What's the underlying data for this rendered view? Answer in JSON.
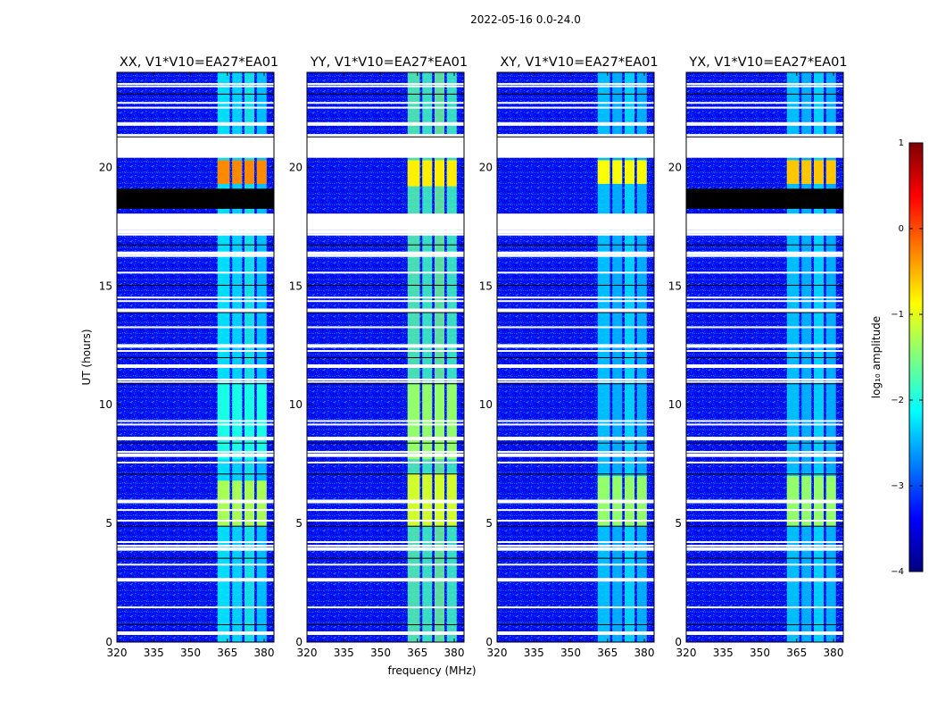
{
  "chart_data": {
    "type": "heatmap",
    "suptitle": "2022-05-16 0.0-24.0",
    "xlabel": "frequency (MHz)",
    "ylabel": "UT (hours)",
    "xlim": [
      320,
      384
    ],
    "ylim": [
      0,
      24
    ],
    "xticks": [
      320,
      335,
      350,
      365,
      380
    ],
    "yticks": [
      0,
      5,
      10,
      15,
      20
    ],
    "colorbar": {
      "label": "log₁₀ amplitude",
      "range": [
        -4,
        1
      ],
      "ticks": [
        1,
        0,
        -1,
        -2,
        -3,
        -4
      ],
      "colormap": [
        "#00007f",
        "#0000ff",
        "#007fff",
        "#00ffff",
        "#7fff7f",
        "#ffff00",
        "#ff7f00",
        "#ff0000",
        "#7f0000"
      ]
    },
    "background_log_amplitude": -3.3,
    "rfi_freq_bands_mhz": [
      [
        361,
        366
      ],
      [
        367,
        371
      ],
      [
        372,
        376
      ],
      [
        377,
        381
      ]
    ],
    "flagged_rows_ut": [
      0.45,
      0.75,
      1.5,
      2.7,
      3.3,
      3.55,
      4.0,
      4.1,
      4.25,
      4.9,
      5.15,
      5.6,
      6.0,
      7.1,
      7.6,
      7.95,
      8.05,
      8.4,
      8.65,
      9.2,
      9.35,
      10.9,
      11.0,
      11.1,
      11.7,
      12.0,
      12.3,
      12.55,
      13.3,
      13.9,
      14.05,
      14.4,
      14.55,
      15.05,
      15.6,
      16.3,
      16.45,
      16.75,
      17.2,
      17.35,
      21.0,
      21.3,
      21.9,
      22.55,
      22.75,
      23.1,
      23.45,
      23.55
    ],
    "flagged_blocks_ut": [
      [
        17.35,
        18.05
      ],
      [
        20.4,
        21.4
      ]
    ],
    "panels": [
      {
        "title": "XX, V1*V10=EA27*EA01",
        "band_strength": [
          -2.1,
          -2.2,
          -2.0,
          -2.3
        ],
        "events": [
          {
            "ut": [
              4.9,
              6.8
            ],
            "freq": [
              361,
              381
            ],
            "log_amplitude": -1.3
          },
          {
            "ut": [
              19.3,
              20.3
            ],
            "freq": [
              361,
              381
            ],
            "log_amplitude": -0.3
          },
          {
            "ut": [
              7.7,
              10.9
            ],
            "freq": [
              361,
              381
            ],
            "log_amplitude": -2.0
          }
        ],
        "blackout_ut": [
          18.25,
          19.1
        ]
      },
      {
        "title": "YY, V1*V10=EA27*EA01",
        "band_strength": [
          -1.7,
          -1.8,
          -1.6,
          -1.8
        ],
        "events": [
          {
            "ut": [
              4.9,
              7.1
            ],
            "freq": [
              361,
              381
            ],
            "log_amplitude": -1.1
          },
          {
            "ut": [
              7.7,
              10.9
            ],
            "freq": [
              361,
              381
            ],
            "log_amplitude": -1.4
          },
          {
            "ut": [
              19.2,
              20.3
            ],
            "freq": [
              361,
              381
            ],
            "log_amplitude": -0.8
          }
        ],
        "blackout_ut": null
      },
      {
        "title": "XY, V1*V10=EA27*EA01",
        "band_strength": [
          -2.3,
          -2.4,
          -2.2,
          -2.4
        ],
        "events": [
          {
            "ut": [
              4.9,
              7.0
            ],
            "freq": [
              361,
              381
            ],
            "log_amplitude": -1.4
          },
          {
            "ut": [
              19.3,
              20.3
            ],
            "freq": [
              361,
              381
            ],
            "log_amplitude": -0.9
          }
        ],
        "blackout_ut": null
      },
      {
        "title": "YX, V1*V10=EA27*EA01",
        "band_strength": [
          -2.3,
          -2.4,
          -2.2,
          -2.4
        ],
        "events": [
          {
            "ut": [
              4.9,
              7.0
            ],
            "freq": [
              361,
              381
            ],
            "log_amplitude": -1.4
          },
          {
            "ut": [
              19.3,
              20.3
            ],
            "freq": [
              361,
              381
            ],
            "log_amplitude": -0.6
          }
        ],
        "blackout_ut": [
          18.25,
          19.1
        ]
      }
    ]
  }
}
